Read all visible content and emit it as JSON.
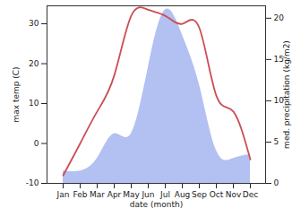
{
  "chart_data": {
    "type": "line",
    "categories": [
      "Jan",
      "Feb",
      "Mar",
      "Apr",
      "May",
      "Jun",
      "Jul",
      "Aug",
      "Sep",
      "Oct",
      "Nov",
      "Dec"
    ],
    "x_label": "date (month)",
    "y_label": "max temp (C)",
    "y2_label": "med. precipitation (kg/m2)",
    "ylim": [
      -10,
      34.5
    ],
    "yticks": [
      -10,
      0,
      10,
      20,
      30
    ],
    "y2lim": [
      0,
      21.5
    ],
    "y2ticks": [
      0,
      5,
      10,
      15,
      20
    ],
    "series": [
      {
        "name": "med. precipitation",
        "type": "area",
        "axis": "y2",
        "color": "#b3c0f2",
        "values": [
          1.5,
          1.5,
          3,
          6,
          6,
          14,
          21,
          18,
          12,
          4,
          3,
          3.5
        ]
      },
      {
        "name": "max temp",
        "type": "line",
        "color": "#cc4d55",
        "values": [
          -8,
          0,
          8,
          17,
          32,
          33.5,
          32,
          30,
          29,
          12,
          8,
          -4
        ]
      }
    ]
  }
}
